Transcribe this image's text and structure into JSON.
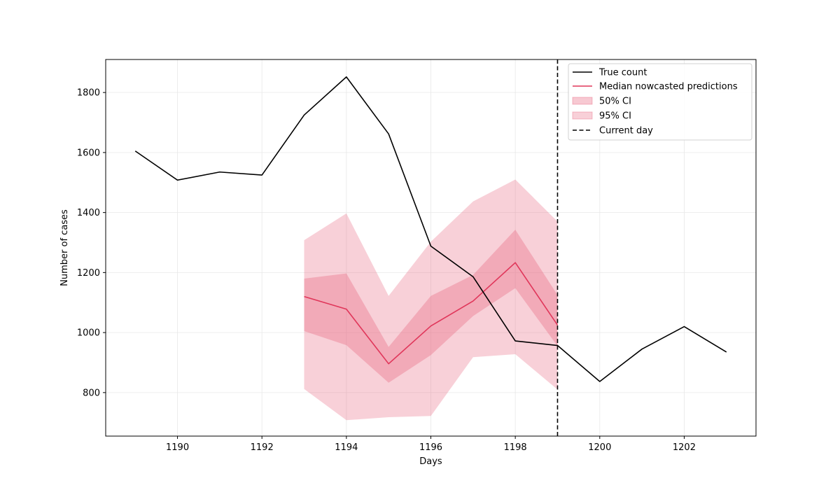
{
  "chart_data": {
    "type": "line",
    "title": "",
    "xlabel": "Days",
    "ylabel": "Number of cases",
    "xlim": [
      1188.3,
      1203.7
    ],
    "ylim": [
      655,
      1910
    ],
    "x_ticks": [
      1190,
      1192,
      1194,
      1196,
      1198,
      1200,
      1202
    ],
    "y_ticks": [
      800,
      1000,
      1200,
      1400,
      1600,
      1800
    ],
    "grid": true,
    "legend_position": "top-right",
    "current_day": 1199,
    "series": [
      {
        "name": "True count",
        "kind": "line",
        "color": "#000000",
        "x": [
          1189,
          1190,
          1191,
          1192,
          1193,
          1194,
          1195,
          1196,
          1197,
          1198,
          1199,
          1200,
          1201,
          1202,
          1203
        ],
        "values": [
          1605,
          1508,
          1535,
          1525,
          1725,
          1852,
          1662,
          1288,
          1186,
          972,
          957,
          837,
          945,
          1020,
          935
        ]
      },
      {
        "name": "Median nowcasted predictions",
        "kind": "line",
        "color": "#e0365a",
        "x": [
          1193,
          1194,
          1195,
          1196,
          1197,
          1198,
          1199
        ],
        "values": [
          1120,
          1078,
          896,
          1022,
          1105,
          1233,
          1025
        ]
      },
      {
        "name": "50% CI",
        "kind": "band",
        "color": "#e8637d",
        "opacity": 0.35,
        "x": [
          1193,
          1194,
          1195,
          1196,
          1197,
          1198,
          1199
        ],
        "lower": [
          1005,
          958,
          833,
          925,
          1055,
          1148,
          955
        ],
        "upper": [
          1180,
          1197,
          952,
          1122,
          1192,
          1343,
          1125
        ]
      },
      {
        "name": "95% CI",
        "kind": "band",
        "color": "#e8637d",
        "opacity": 0.3,
        "x": [
          1193,
          1194,
          1195,
          1196,
          1197,
          1198,
          1199
        ],
        "lower": [
          812,
          708,
          718,
          722,
          918,
          928,
          810
        ],
        "upper": [
          1308,
          1397,
          1122,
          1303,
          1437,
          1510,
          1370
        ]
      },
      {
        "name": "Current day",
        "kind": "vline",
        "color": "#000000",
        "style": "dashed"
      }
    ]
  }
}
